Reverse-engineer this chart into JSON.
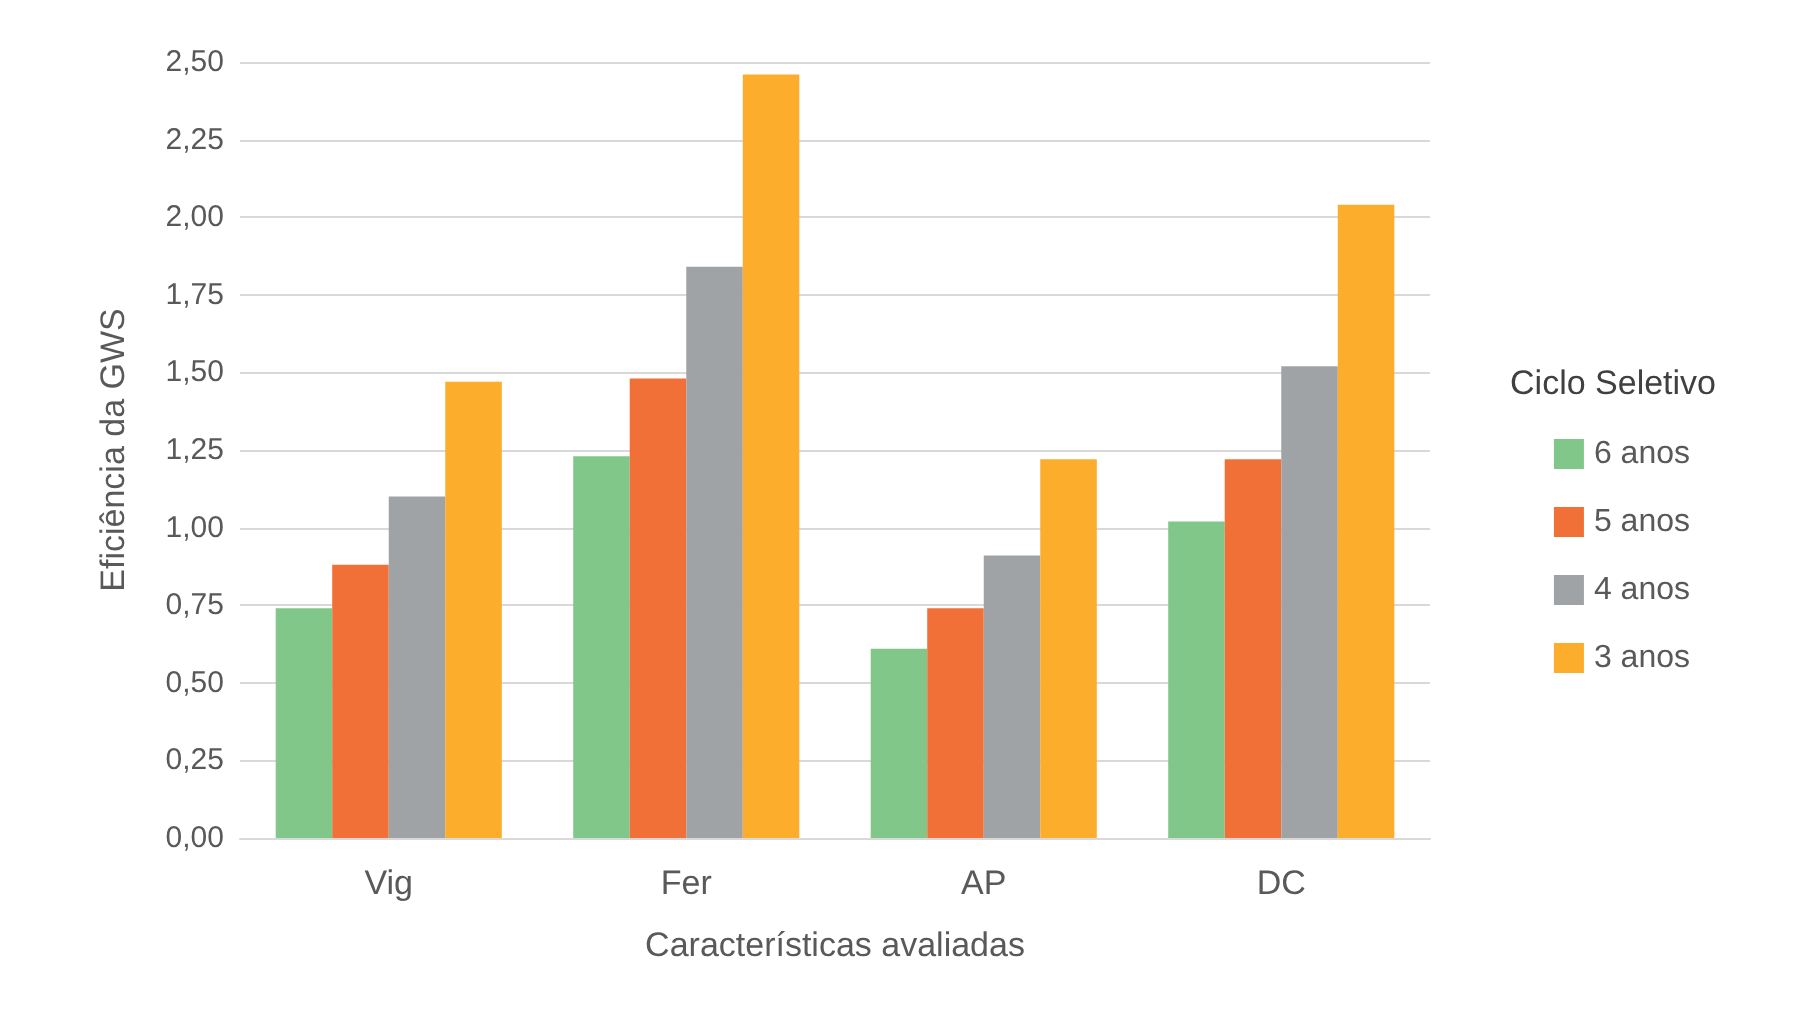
{
  "chart_data": {
    "type": "bar",
    "xlabel": "Características avaliadas",
    "ylabel": "Eficiência da GWS",
    "legend_title": "Ciclo Seletivo",
    "categories": [
      "Vig",
      "Fer",
      "AP",
      "DC"
    ],
    "series": [
      {
        "name": "6 anos",
        "color": "#82c78a",
        "values": [
          0.74,
          1.23,
          0.61,
          1.02
        ]
      },
      {
        "name": "5 anos",
        "color": "#f07037",
        "values": [
          0.88,
          1.48,
          0.74,
          1.22
        ]
      },
      {
        "name": "4 anos",
        "color": "#a0a3a6",
        "values": [
          1.1,
          1.84,
          0.91,
          1.52
        ]
      },
      {
        "name": "3 anos",
        "color": "#fbad2b",
        "values": [
          1.47,
          2.46,
          1.22,
          2.04
        ]
      }
    ],
    "ylim": [
      0,
      2.5
    ],
    "yticks": [
      {
        "value": 0,
        "label": "0,00"
      },
      {
        "value": 0.25,
        "label": "0,25"
      },
      {
        "value": 0.5,
        "label": "0,50"
      },
      {
        "value": 0.75,
        "label": "0,75"
      },
      {
        "value": 1,
        "label": "1,00"
      },
      {
        "value": 1.25,
        "label": "1,25"
      },
      {
        "value": 1.5,
        "label": "1,50"
      },
      {
        "value": 1.75,
        "label": "1,75"
      },
      {
        "value": 2,
        "label": "2,00"
      },
      {
        "value": 2.25,
        "label": "2,25"
      },
      {
        "value": 2.5,
        "label": "2,50"
      }
    ],
    "grid": "y",
    "legend": "right"
  }
}
